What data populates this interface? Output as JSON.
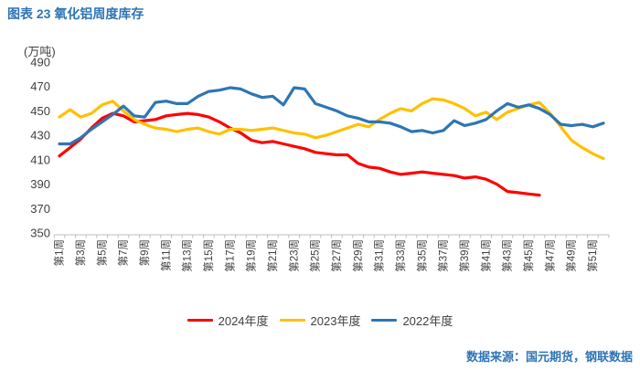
{
  "header": {
    "title": "图表 23 氧化铝周度库存"
  },
  "footer": {
    "source": "数据来源：国元期货，钢联数据"
  },
  "colors": {
    "title_text": "#2E74B5",
    "footer_text": "#2E74B5",
    "axis_text": "#404040",
    "axis_line": "#BFBFBF",
    "series_2024": "#FF0000",
    "series_2023": "#FFC000",
    "series_2022": "#2E75B6"
  },
  "chart_data": {
    "type": "line",
    "title": "氧化铝周度库存",
    "unit_label": "(万吨)",
    "xlabel": "",
    "ylabel": "库存(万吨)",
    "ylim": [
      350,
      490
    ],
    "y_ticks": [
      490,
      470,
      450,
      430,
      410,
      390,
      370,
      350
    ],
    "weeks": 52,
    "grid": false,
    "legend_position": "bottom",
    "x_tick_labels": [
      "第1周",
      "第3周",
      "第5周",
      "第7周",
      "第9周",
      "第11周",
      "第13周",
      "第15周",
      "第17周",
      "第19周",
      "第21周",
      "第23周",
      "第25周",
      "第27周",
      "第29周",
      "第31周",
      "第33周",
      "第35周",
      "第37周",
      "第39周",
      "第41周",
      "第43周",
      "第45周",
      "第47周",
      "第49周",
      "第51周"
    ],
    "series": [
      {
        "name": "2024年度",
        "key": "2024",
        "color": "#FF0000",
        "values": [
          413,
          420,
          427,
          436,
          444,
          448,
          446,
          441,
          442,
          443,
          446,
          447,
          448,
          447,
          445,
          441,
          436,
          432,
          426,
          424,
          425,
          423,
          421,
          419,
          416,
          415,
          414,
          414,
          407,
          404,
          403,
          400,
          398,
          399,
          400,
          399,
          398,
          397,
          395,
          396,
          394,
          390,
          384,
          383,
          382,
          381
        ]
      },
      {
        "name": "2023年度",
        "key": "2023",
        "color": "#FFC000",
        "values": [
          445,
          451,
          445,
          448,
          455,
          458,
          450,
          443,
          439,
          436,
          435,
          433,
          435,
          436,
          433,
          431,
          435,
          435,
          434,
          435,
          436,
          434,
          432,
          431,
          428,
          430,
          433,
          436,
          439,
          437,
          443,
          448,
          452,
          450,
          456,
          460,
          459,
          456,
          452,
          446,
          449,
          443,
          449,
          452,
          455,
          457,
          448,
          437,
          426,
          420,
          415,
          411
        ]
      },
      {
        "name": "2022年度",
        "key": "2022",
        "color": "#2E75B6",
        "values": [
          423,
          423,
          428,
          435,
          441,
          447,
          454,
          446,
          445,
          457,
          458,
          456,
          456,
          462,
          466,
          467,
          469,
          468,
          464,
          461,
          462,
          455,
          469,
          468,
          456,
          453,
          450,
          446,
          444,
          441,
          441,
          440,
          437,
          433,
          434,
          432,
          434,
          442,
          438,
          440,
          443,
          450,
          456,
          453,
          455,
          452,
          447,
          439,
          438,
          439,
          437,
          440
        ]
      }
    ]
  }
}
